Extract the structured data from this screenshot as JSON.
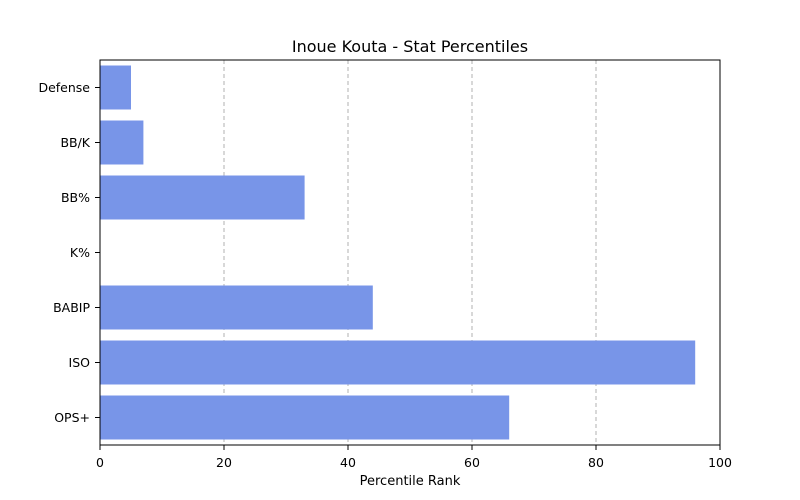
{
  "chart_data": {
    "type": "bar",
    "orientation": "horizontal",
    "title": "Inoue Kouta - Stat Percentiles",
    "xlabel": "Percentile Rank",
    "ylabel": "",
    "xlim": [
      0,
      100
    ],
    "xticks": [
      "0",
      "20",
      "40",
      "60",
      "80",
      "100"
    ],
    "categories": [
      "OPS+",
      "ISO",
      "BABIP",
      "K%",
      "BB%",
      "BB/K",
      "Defense"
    ],
    "values": [
      66,
      96,
      44,
      0,
      33,
      7,
      5
    ],
    "grid": "x-dashed",
    "legend": "none",
    "bar_color": "#7895e8"
  }
}
